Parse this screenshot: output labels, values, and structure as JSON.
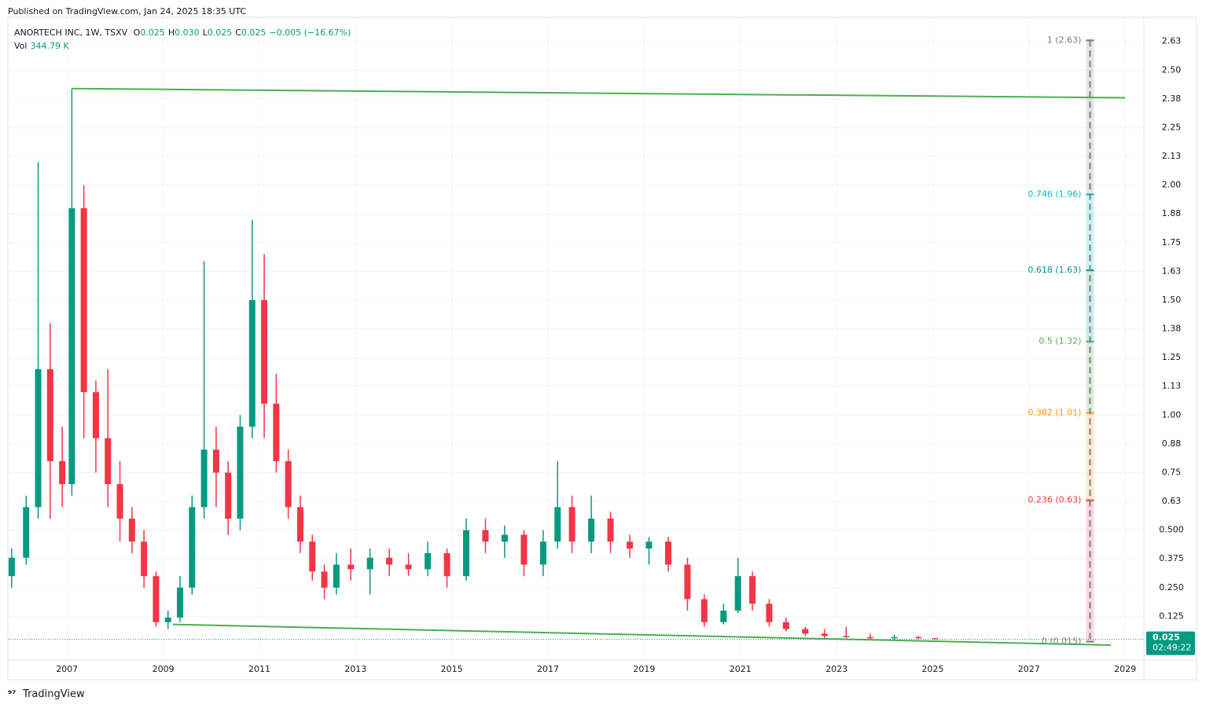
{
  "header": {
    "published": "Published on TradingView.com, Jan 24, 2025 18:35 UTC",
    "footer": "TradingView"
  },
  "chart_data": {
    "type": "candlestick",
    "symbol": "ANORTECH INC, 1W, TSXV",
    "ohlc_legend": [
      {
        "label": "O",
        "value": "0.025"
      },
      {
        "label": "H",
        "value": "0.030"
      },
      {
        "label": "L",
        "value": "0.025"
      },
      {
        "label": "C",
        "value": "0.025"
      }
    ],
    "change": "−0.005 (−16.67%)",
    "volume_label": "Vol",
    "volume": "344.79 K",
    "price_label": "0.025",
    "countdown": "02:49:22",
    "up_color": "#089981",
    "down_color": "#f23645",
    "x": [
      2005.85,
      2006.15,
      2006.4,
      2006.65,
      2006.9,
      2007.1,
      2007.35,
      2007.6,
      2007.85,
      2008.1,
      2008.35,
      2008.6,
      2008.85,
      2009.1,
      2009.35,
      2009.6,
      2009.85,
      2010.1,
      2010.35,
      2010.6,
      2010.85,
      2011.1,
      2011.35,
      2011.6,
      2011.85,
      2012.1,
      2012.35,
      2012.6,
      2012.9,
      2013.3,
      2013.7,
      2014.1,
      2014.5,
      2014.9,
      2015.3,
      2015.7,
      2016.1,
      2016.5,
      2016.9,
      2017.2,
      2017.5,
      2017.9,
      2018.3,
      2018.7,
      2019.1,
      2019.5,
      2019.9,
      2020.25,
      2020.65,
      2020.95,
      2021.25,
      2021.6,
      2021.95,
      2022.35,
      2022.75,
      2023.2,
      2023.7,
      2024.2,
      2024.7,
      2025.05
    ],
    "open": [
      0.3,
      0.38,
      0.6,
      1.2,
      0.8,
      0.7,
      1.9,
      1.1,
      0.9,
      0.7,
      0.55,
      0.45,
      0.3,
      0.1,
      0.12,
      0.25,
      0.6,
      0.85,
      0.75,
      0.55,
      0.95,
      1.5,
      1.05,
      0.8,
      0.6,
      0.45,
      0.32,
      0.25,
      0.35,
      0.33,
      0.38,
      0.35,
      0.33,
      0.4,
      0.3,
      0.5,
      0.45,
      0.48,
      0.35,
      0.45,
      0.6,
      0.45,
      0.55,
      0.45,
      0.42,
      0.45,
      0.35,
      0.2,
      0.1,
      0.15,
      0.3,
      0.18,
      0.1,
      0.07,
      0.05,
      0.04,
      0.035,
      0.03,
      0.035,
      0.03
    ],
    "high": [
      0.42,
      0.65,
      2.1,
      1.4,
      0.95,
      2.42,
      2.0,
      1.15,
      1.2,
      0.8,
      0.6,
      0.5,
      0.32,
      0.15,
      0.3,
      0.65,
      1.67,
      0.95,
      0.8,
      1.0,
      1.85,
      1.7,
      1.18,
      0.85,
      0.65,
      0.48,
      0.35,
      0.4,
      0.42,
      0.42,
      0.42,
      0.4,
      0.45,
      0.42,
      0.55,
      0.55,
      0.52,
      0.5,
      0.5,
      0.8,
      0.65,
      0.65,
      0.58,
      0.48,
      0.47,
      0.47,
      0.38,
      0.22,
      0.18,
      0.38,
      0.32,
      0.2,
      0.12,
      0.08,
      0.07,
      0.08,
      0.05,
      0.045,
      0.04,
      0.03
    ],
    "low": [
      0.25,
      0.35,
      0.55,
      0.55,
      0.6,
      0.65,
      0.9,
      0.75,
      0.6,
      0.45,
      0.4,
      0.25,
      0.08,
      0.07,
      0.1,
      0.22,
      0.55,
      0.6,
      0.48,
      0.5,
      0.9,
      0.9,
      0.75,
      0.55,
      0.4,
      0.28,
      0.2,
      0.22,
      0.28,
      0.22,
      0.3,
      0.3,
      0.3,
      0.25,
      0.28,
      0.4,
      0.38,
      0.3,
      0.3,
      0.42,
      0.4,
      0.4,
      0.4,
      0.38,
      0.35,
      0.32,
      0.15,
      0.08,
      0.09,
      0.14,
      0.15,
      0.08,
      0.06,
      0.04,
      0.03,
      0.03,
      0.025,
      0.025,
      0.025,
      0.025
    ],
    "close": [
      0.38,
      0.6,
      1.2,
      0.8,
      0.7,
      1.9,
      1.1,
      0.9,
      0.7,
      0.55,
      0.45,
      0.3,
      0.1,
      0.12,
      0.25,
      0.6,
      0.85,
      0.75,
      0.55,
      0.95,
      1.5,
      1.05,
      0.8,
      0.6,
      0.45,
      0.32,
      0.25,
      0.35,
      0.33,
      0.38,
      0.35,
      0.33,
      0.4,
      0.3,
      0.5,
      0.45,
      0.48,
      0.35,
      0.45,
      0.6,
      0.45,
      0.55,
      0.45,
      0.42,
      0.45,
      0.35,
      0.2,
      0.1,
      0.15,
      0.3,
      0.18,
      0.1,
      0.07,
      0.05,
      0.04,
      0.035,
      0.03,
      0.035,
      0.03,
      0.025
    ],
    "trend_lines": [
      {
        "color": "#4caf50",
        "x": [
          2007.1,
          2029.0
        ],
        "y": [
          2.42,
          2.38
        ]
      },
      {
        "color": "#4caf50",
        "x": [
          2009.2,
          2028.7
        ],
        "y": [
          0.09,
          0.0
        ]
      }
    ],
    "fib": {
      "x": 2028.27,
      "levels": [
        {
          "label": "1 (2.63)",
          "value": 2.63,
          "color": "#787b86"
        },
        {
          "label": "0.746 (1.96)",
          "value": 1.96,
          "color": "#00bcd4"
        },
        {
          "label": "0.618 (1.63)",
          "value": 1.63,
          "color": "#089981"
        },
        {
          "label": "0.5 (1.32)",
          "value": 1.32,
          "color": "#4caf50"
        },
        {
          "label": "0.382 (1.01)",
          "value": 1.01,
          "color": "#ff9800"
        },
        {
          "label": "0.236 (0.63)",
          "value": 0.63,
          "color": "#f23645"
        },
        {
          "label": "0 (0.015)",
          "value": 0.015,
          "color": "#787b86"
        }
      ]
    },
    "xlim": [
      2005.77,
      2029.39
    ],
    "xticks": [
      2007,
      2009,
      2011,
      2013,
      2015,
      2017,
      2019,
      2021,
      2023,
      2025,
      2027,
      2029
    ],
    "ylim": [
      -0.065,
      2.73
    ],
    "yticks": [
      {
        "value": 2.625,
        "label": "2.63"
      },
      {
        "value": 2.5,
        "label": "2.50"
      },
      {
        "value": 2.375,
        "label": "2.38"
      },
      {
        "value": 2.25,
        "label": "2.25"
      },
      {
        "value": 2.125,
        "label": "2.13"
      },
      {
        "value": 2,
        "label": "2.00"
      },
      {
        "value": 1.875,
        "label": "1.88"
      },
      {
        "value": 1.75,
        "label": "1.75"
      },
      {
        "value": 1.625,
        "label": "1.63"
      },
      {
        "value": 1.5,
        "label": "1.50"
      },
      {
        "value": 1.375,
        "label": "1.38"
      },
      {
        "value": 1.25,
        "label": "1.25"
      },
      {
        "value": 1.125,
        "label": "1.13"
      },
      {
        "value": 1,
        "label": "1.00"
      },
      {
        "value": 0.875,
        "label": "0.88"
      },
      {
        "value": 0.75,
        "label": "0.75"
      },
      {
        "value": 0.625,
        "label": "0.63"
      },
      {
        "value": 0.5,
        "label": "0.500"
      },
      {
        "value": 0.375,
        "label": "0.375"
      },
      {
        "value": 0.25,
        "label": "0.250"
      },
      {
        "value": 0.125,
        "label": "0.125"
      }
    ],
    "grid": true
  }
}
